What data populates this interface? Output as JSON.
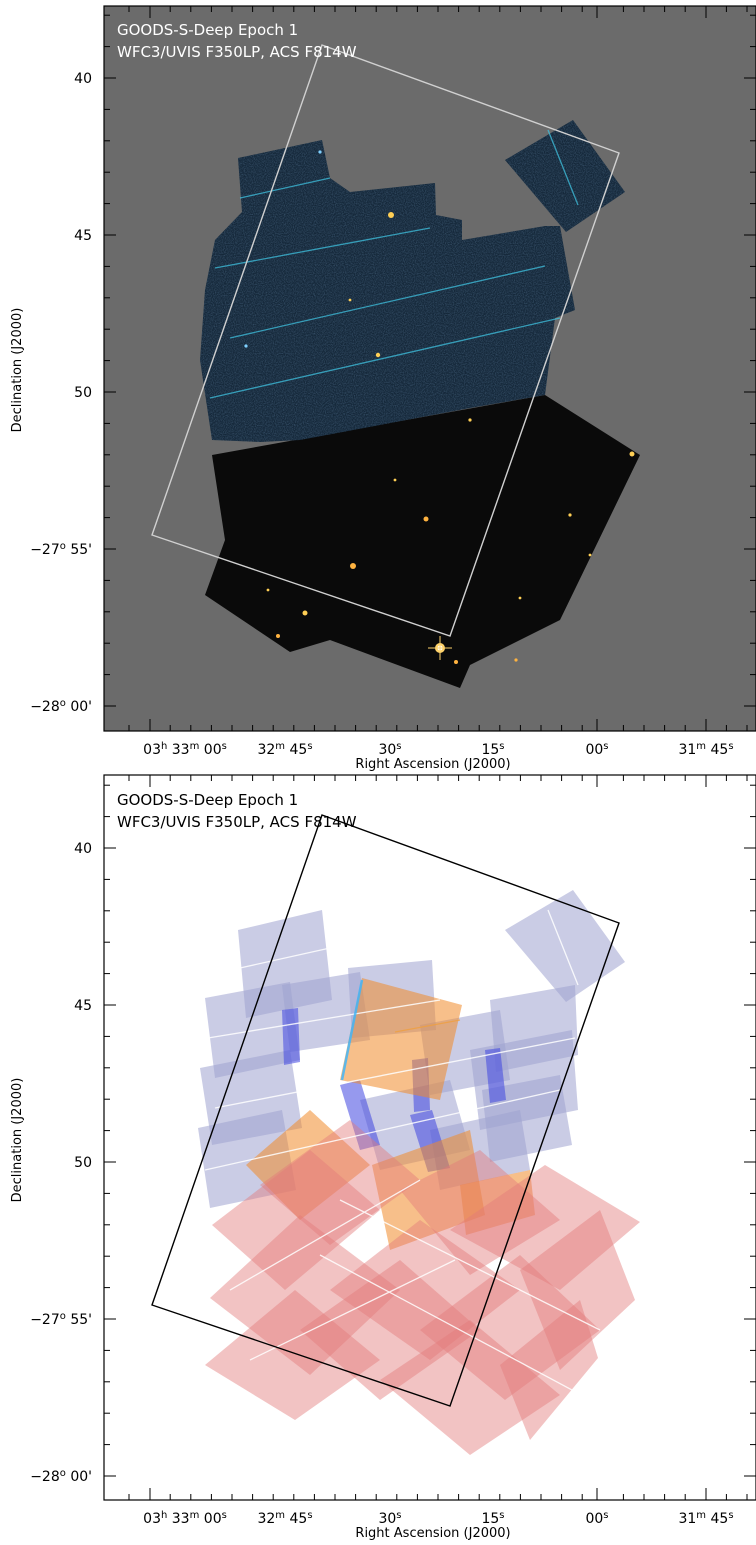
{
  "panels": [
    {
      "id": "top",
      "title_line1": "GOODS-S-Deep Epoch 1",
      "title_line2": "WFC3/UVIS F350LP, ACS F814W",
      "y_ticks": [
        {
          "main": "40"
        },
        {
          "main": "45"
        },
        {
          "main": "50"
        },
        {
          "prefix": "−27",
          "sup": "o",
          "main": " 55'"
        },
        {
          "prefix": "−28",
          "sup": "o",
          "main": " 00'"
        }
      ],
      "x_ticks": [
        {
          "parts": [
            [
              "03",
              "h"
            ],
            [
              " 33",
              "m"
            ],
            [
              " 00",
              "s"
            ]
          ]
        },
        {
          "parts": [
            [
              "32",
              "m"
            ],
            [
              " 45",
              "s"
            ]
          ]
        },
        {
          "parts": [
            [
              "30",
              "s"
            ]
          ]
        },
        {
          "parts": [
            [
              "15",
              "s"
            ]
          ]
        },
        {
          "parts": [
            [
              "00",
              "s"
            ]
          ]
        },
        {
          "parts": [
            [
              "31",
              "m"
            ],
            [
              " 45",
              "s"
            ]
          ]
        }
      ],
      "xlabel": "Right Ascension (J2000)",
      "ylabel": "Declination (J2000)"
    },
    {
      "id": "bottom",
      "title_line1": "GOODS-S-Deep Epoch 1",
      "title_line2": "WFC3/UVIS F350LP, ACS F814W",
      "y_ticks": [
        {
          "main": "40"
        },
        {
          "main": "45"
        },
        {
          "main": "50"
        },
        {
          "prefix": "−27",
          "sup": "o",
          "main": " 55'"
        },
        {
          "prefix": "−28",
          "sup": "o",
          "main": " 00'"
        }
      ],
      "x_ticks": [
        {
          "parts": [
            [
              "03",
              "h"
            ],
            [
              " 33",
              "m"
            ],
            [
              " 00",
              "s"
            ]
          ]
        },
        {
          "parts": [
            [
              "32",
              "m"
            ],
            [
              " 45",
              "s"
            ]
          ]
        },
        {
          "parts": [
            [
              "30",
              "s"
            ]
          ]
        },
        {
          "parts": [
            [
              "15",
              "s"
            ]
          ]
        },
        {
          "parts": [
            [
              "00",
              "s"
            ]
          ]
        },
        {
          "parts": [
            [
              "31",
              "m"
            ],
            [
              " 45",
              "s"
            ]
          ]
        }
      ],
      "xlabel": "Right Ascension (J2000)",
      "ylabel": "Declination (J2000)"
    }
  ],
  "colors": {
    "sky_gray": "#6b6b6b",
    "image_dark": "#0b0b0b",
    "image_blue": "#16283a",
    "footprint_top": "#d0d0d0",
    "footprint_bottom": "#000000",
    "uvis_tile": "#9fa3d0",
    "acs_tile": "#e37a7a",
    "orange_tile": "#f08a2a",
    "overlap_blue": "#3f46e0"
  }
}
